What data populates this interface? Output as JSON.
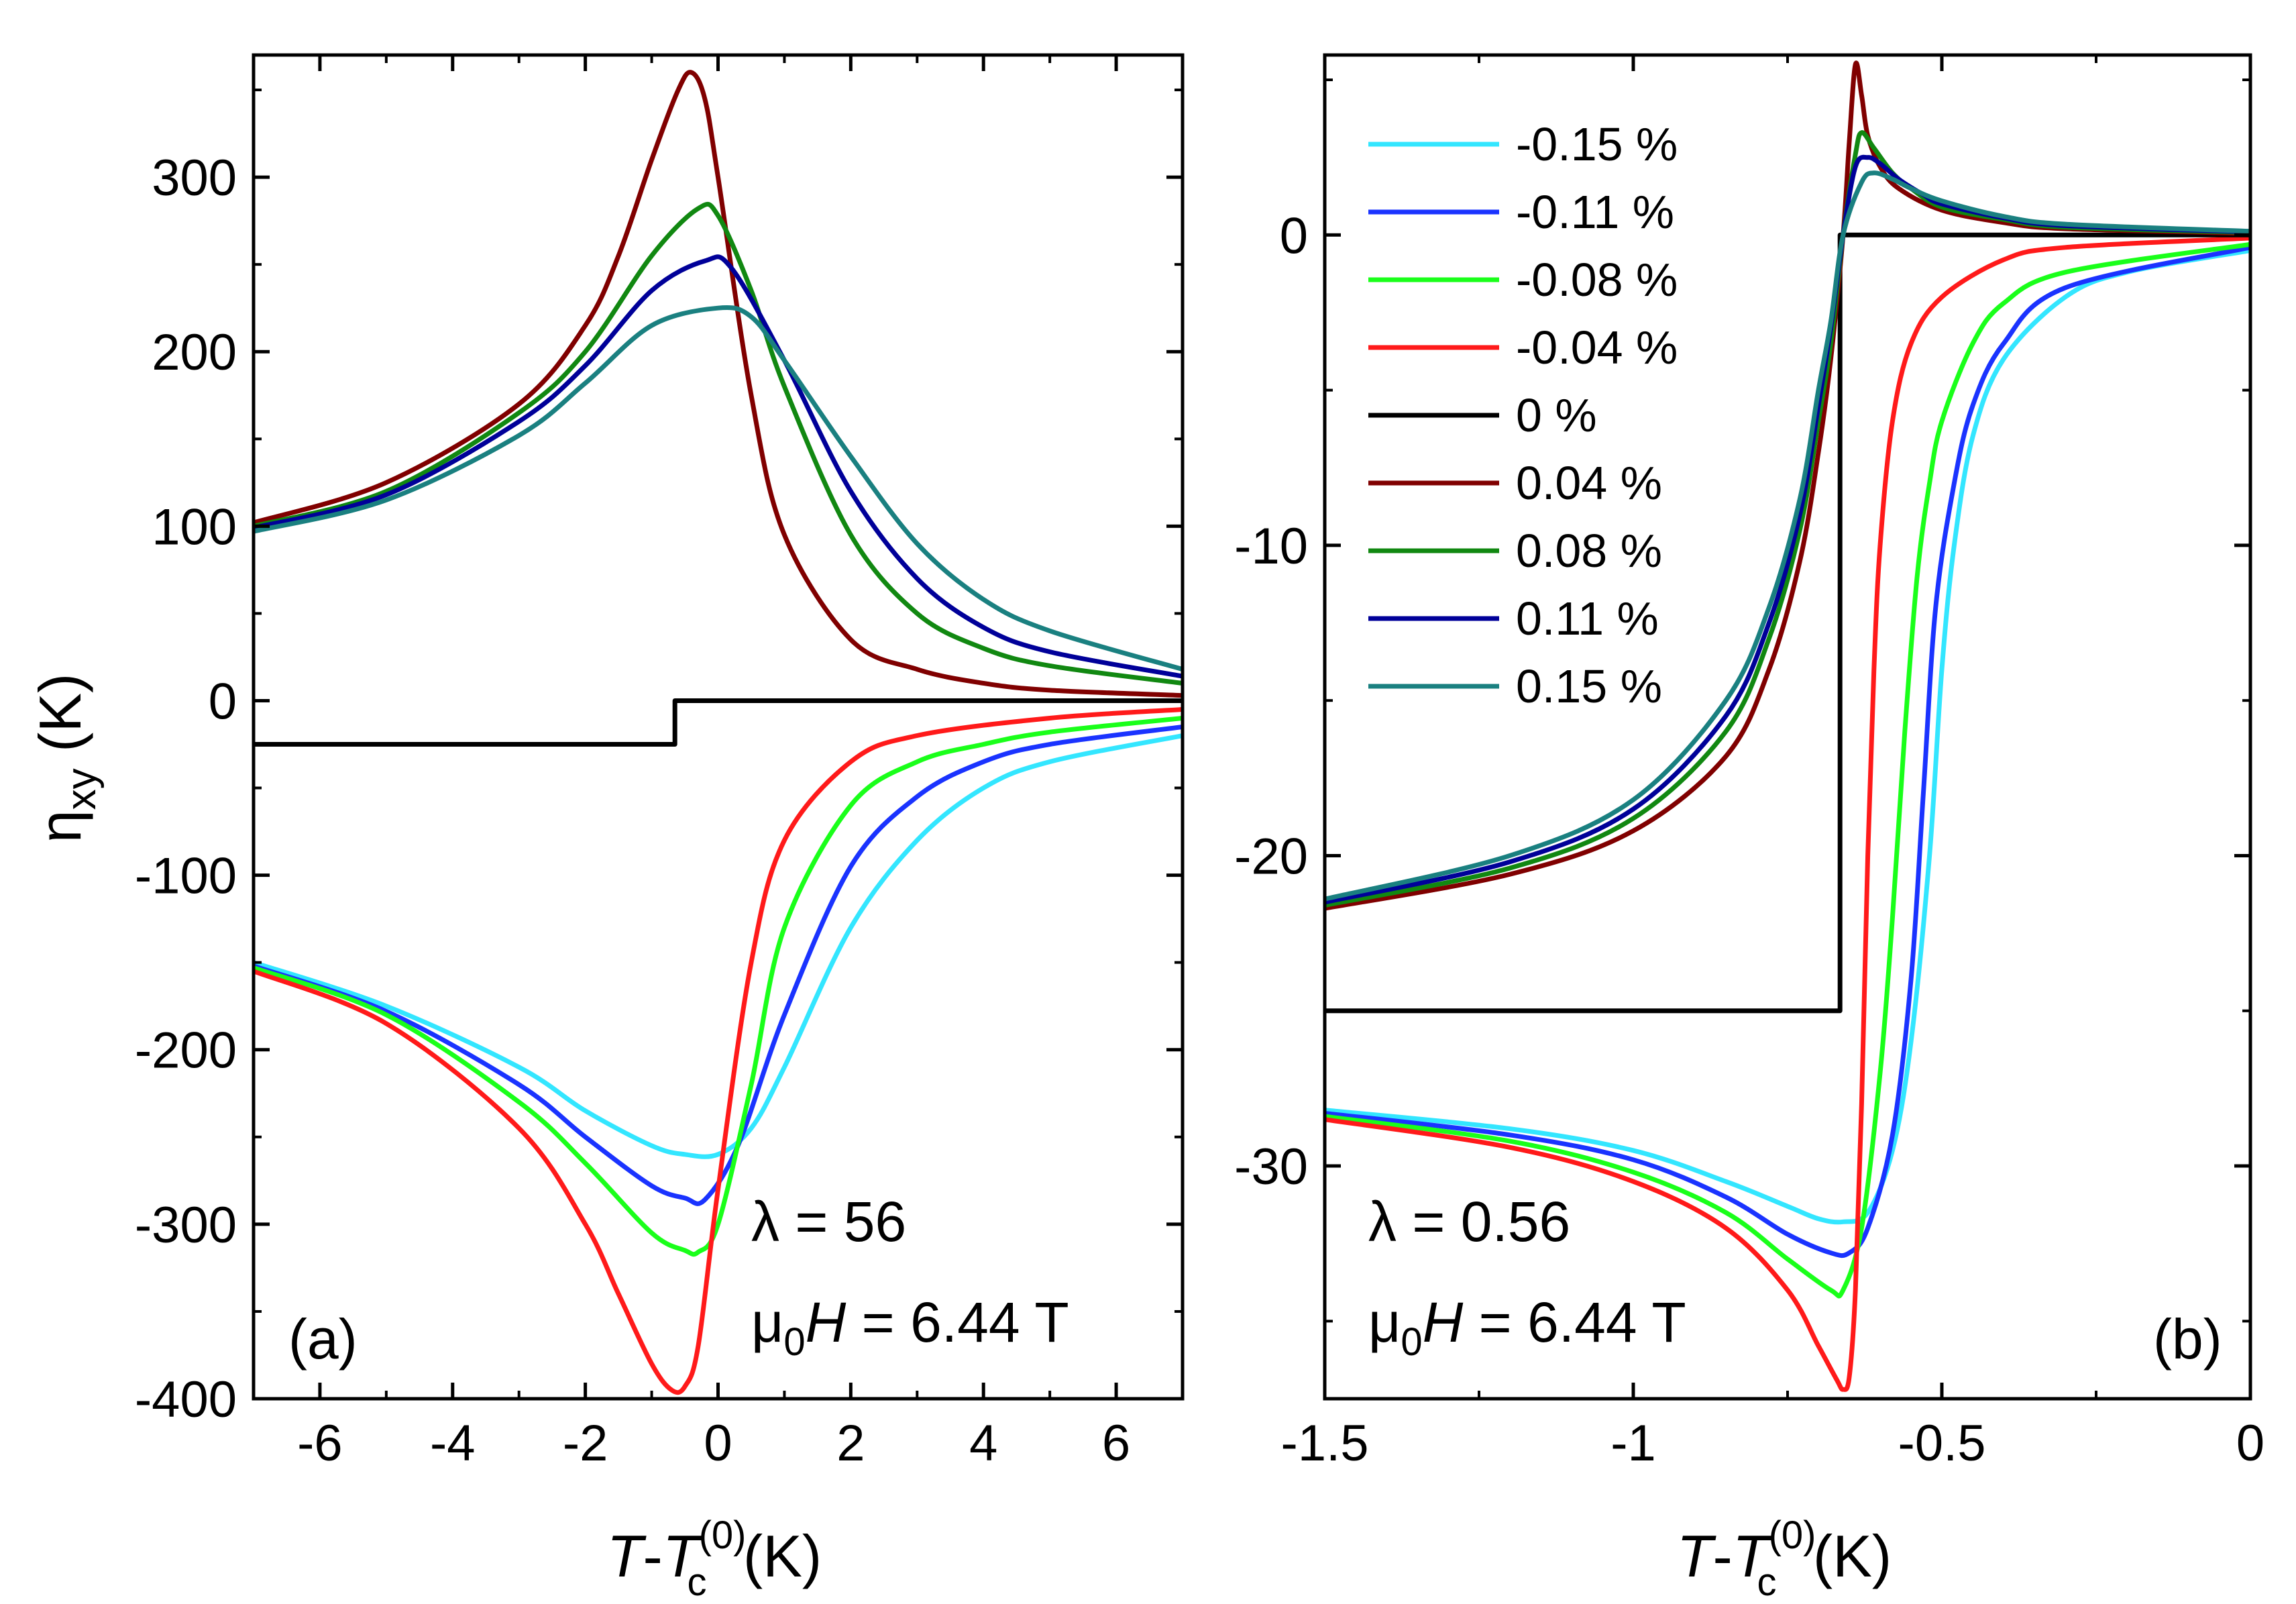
{
  "figure": {
    "ylabel": {
      "main": "η",
      "sub": "xy",
      "unit": " (K)"
    },
    "xlabel": {
      "italic": "T",
      "dash": "-",
      "italic2": "T",
      "sub": "c",
      "sup": "(0)",
      "unit": " (K)"
    }
  },
  "chart_data": [
    {
      "panel_label": "(a)",
      "type": "line",
      "xlim": [
        -7,
        7
      ],
      "ylim": [
        -400,
        370
      ],
      "xticks": [
        -6,
        -4,
        -2,
        0,
        2,
        4,
        6
      ],
      "xtick_labels": [
        "-6",
        "-4",
        "-2",
        "0",
        "2",
        "4",
        "6"
      ],
      "yticks": [
        -400,
        -300,
        -200,
        -100,
        0,
        100,
        200,
        300
      ],
      "ytick_labels": [
        "-400",
        "-300",
        "-200",
        "-100",
        "0",
        "100",
        "200",
        "300"
      ],
      "annotation": {
        "lambda_label": "λ = 56",
        "field_label": "μ",
        "field_sub": "0",
        "field_italic": "H",
        "field_value": " = 6.44 T"
      },
      "series": [
        {
          "name": "-0.15 %",
          "color": "#33e6ff",
          "x": [
            -7,
            -5,
            -3,
            -2,
            -1,
            -0.5,
            0,
            0.5,
            1,
            2,
            3,
            4,
            5,
            7
          ],
          "y": [
            -150,
            -175,
            -210,
            -235,
            -255,
            -260,
            -260,
            -245,
            -210,
            -130,
            -80,
            -50,
            -35,
            -20
          ]
        },
        {
          "name": "-0.11 %",
          "color": "#1a33ff",
          "x": [
            -7,
            -5,
            -3,
            -2,
            -1,
            -0.5,
            -0.2,
            0.3,
            1,
            2,
            3,
            4,
            5,
            7
          ],
          "y": [
            -152,
            -178,
            -220,
            -250,
            -278,
            -285,
            -286,
            -255,
            -180,
            -95,
            -55,
            -35,
            -25,
            -15
          ]
        },
        {
          "name": "-0.08 %",
          "color": "#1aff1a",
          "x": [
            -7,
            -5,
            -3,
            -2,
            -1,
            -0.5,
            -0.3,
            0,
            0.5,
            1,
            2,
            3,
            4,
            5,
            7
          ],
          "y": [
            -153,
            -180,
            -230,
            -265,
            -305,
            -315,
            -316,
            -300,
            -220,
            -130,
            -60,
            -35,
            -25,
            -18,
            -10
          ]
        },
        {
          "name": "-0.04 %",
          "color": "#ff1a1a",
          "x": [
            -7,
            -5,
            -3,
            -2,
            -1.5,
            -1,
            -0.7,
            -0.5,
            -0.3,
            0,
            0.5,
            1,
            2,
            3,
            5,
            7
          ],
          "y": [
            -155,
            -185,
            -245,
            -300,
            -340,
            -380,
            -395,
            -393,
            -370,
            -280,
            -150,
            -80,
            -35,
            -20,
            -10,
            -5
          ]
        },
        {
          "name": "0 %",
          "color": "#000000",
          "x": [
            -7,
            -0.65,
            -0.65,
            7
          ],
          "y": [
            -25,
            -25,
            0,
            0
          ]
        },
        {
          "name": "0.04 %",
          "color": "#800000",
          "x": [
            -7,
            -5,
            -3,
            -2,
            -1.5,
            -1,
            -0.6,
            -0.4,
            -0.2,
            0,
            0.5,
            1,
            2,
            3,
            4,
            5,
            7
          ],
          "y": [
            102,
            125,
            170,
            215,
            255,
            310,
            350,
            360,
            345,
            300,
            175,
            95,
            35,
            18,
            10,
            6,
            3
          ]
        },
        {
          "name": "0.08 %",
          "color": "#118811",
          "x": [
            -7,
            -5,
            -3,
            -2,
            -1,
            -0.3,
            0,
            0.5,
            1,
            2,
            3,
            4,
            5,
            7
          ],
          "y": [
            100,
            120,
            165,
            200,
            255,
            282,
            278,
            235,
            180,
            95,
            50,
            30,
            20,
            10
          ]
        },
        {
          "name": "0.11 %",
          "color": "#000099",
          "x": [
            -7,
            -5,
            -3,
            -2,
            -1,
            -0.2,
            0.2,
            1,
            2,
            3,
            4,
            5,
            7
          ],
          "y": [
            99,
            118,
            160,
            192,
            235,
            252,
            248,
            195,
            120,
            70,
            42,
            28,
            14
          ]
        },
        {
          "name": "0.15 %",
          "color": "#1a8080",
          "x": [
            -7,
            -5,
            -3,
            -2,
            -1,
            0,
            0.5,
            1,
            2,
            3,
            4,
            5,
            7
          ],
          "y": [
            97,
            115,
            152,
            182,
            215,
            225,
            220,
            195,
            140,
            90,
            58,
            40,
            18
          ]
        }
      ]
    },
    {
      "panel_label": "(b)",
      "type": "line",
      "xlim": [
        -1.5,
        0
      ],
      "ylim": [
        -37.5,
        5.8
      ],
      "xticks": [
        -1.5,
        -1,
        -0.5,
        0
      ],
      "xtick_labels": [
        "-1.5",
        "-1",
        "-0.5",
        "0"
      ],
      "yticks": [
        -30,
        -20,
        -10,
        0
      ],
      "ytick_labels": [
        "-30",
        "-20",
        "-10",
        "0"
      ],
      "annotation": {
        "lambda_label": "λ = 0.56",
        "field_label": "μ",
        "field_sub": "0",
        "field_italic": "H",
        "field_value": " = 6.44 T"
      },
      "legend": {
        "position": "top-left"
      },
      "series": [
        {
          "name": "-0.15 %",
          "color": "#33e6ff",
          "x": [
            -1.5,
            -1.2,
            -1.0,
            -0.85,
            -0.75,
            -0.7,
            -0.66,
            -0.62,
            -0.58,
            -0.55,
            -0.52,
            -0.5,
            -0.48,
            -0.45,
            -0.4,
            -0.3,
            -0.2,
            0
          ],
          "y": [
            -28.2,
            -28.8,
            -29.5,
            -30.5,
            -31.3,
            -31.7,
            -31.8,
            -31.5,
            -29.5,
            -26,
            -20,
            -14,
            -10,
            -6.5,
            -4,
            -2,
            -1.2,
            -0.5
          ]
        },
        {
          "name": "-0.11 %",
          "color": "#1a33ff",
          "x": [
            -1.5,
            -1.2,
            -1.0,
            -0.85,
            -0.75,
            -0.68,
            -0.65,
            -0.62,
            -0.58,
            -0.55,
            -0.53,
            -0.51,
            -0.48,
            -0.45,
            -0.4,
            -0.3,
            0
          ],
          "y": [
            -28.3,
            -29,
            -29.8,
            -31,
            -32.2,
            -32.8,
            -32.8,
            -32,
            -29,
            -24,
            -18,
            -12,
            -8,
            -5.5,
            -3.5,
            -1.7,
            -0.4
          ]
        },
        {
          "name": "-0.08 %",
          "color": "#1aff1a",
          "x": [
            -1.5,
            -1.2,
            -1.0,
            -0.85,
            -0.75,
            -0.68,
            -0.66,
            -0.63,
            -0.6,
            -0.58,
            -0.56,
            -0.54,
            -0.52,
            -0.5,
            -0.45,
            -0.4,
            -0.3,
            0
          ],
          "y": [
            -28.4,
            -29.2,
            -30.2,
            -31.5,
            -33,
            -34,
            -34,
            -32,
            -27,
            -22,
            -16,
            -11,
            -8,
            -6,
            -3.5,
            -2.2,
            -1.2,
            -0.3
          ]
        },
        {
          "name": "-0.04 %",
          "color": "#ff1a1a",
          "x": [
            -1.5,
            -1.2,
            -1.0,
            -0.85,
            -0.75,
            -0.7,
            -0.67,
            -0.66,
            -0.65,
            -0.64,
            -0.63,
            -0.62,
            -0.61,
            -0.6,
            -0.58,
            -0.55,
            -0.5,
            -0.4,
            -0.3,
            0
          ],
          "y": [
            -28.5,
            -29.4,
            -30.5,
            -32,
            -34,
            -35.8,
            -36.9,
            -37.2,
            -36.8,
            -34,
            -28,
            -20,
            -14,
            -10,
            -6,
            -3.5,
            -2,
            -0.8,
            -0.4,
            -0.1
          ]
        },
        {
          "name": "0 %",
          "color": "#000000",
          "x": [
            -1.5,
            -0.665,
            -0.665,
            0
          ],
          "y": [
            -25,
            -25,
            0,
            0
          ]
        },
        {
          "name": "0.04 %",
          "color": "#800000",
          "x": [
            -1.5,
            -1.2,
            -1.0,
            -0.85,
            -0.78,
            -0.73,
            -0.7,
            -0.68,
            -0.66,
            -0.65,
            -0.64,
            -0.63,
            -0.62,
            -0.6,
            -0.57,
            -0.5,
            -0.4,
            -0.3,
            0
          ],
          "y": [
            -21.7,
            -20.6,
            -19.2,
            -16.8,
            -14,
            -10.5,
            -7,
            -4,
            0,
            3,
            5.5,
            4.5,
            3.2,
            2.2,
            1.5,
            0.8,
            0.4,
            0.2,
            0.05
          ]
        },
        {
          "name": "0.08 %",
          "color": "#118811",
          "x": [
            -1.5,
            -1.2,
            -1.0,
            -0.85,
            -0.78,
            -0.73,
            -0.7,
            -0.68,
            -0.66,
            -0.64,
            -0.63,
            -0.61,
            -0.58,
            -0.55,
            -0.5,
            -0.4,
            -0.3,
            0
          ],
          "y": [
            -21.6,
            -20.4,
            -18.8,
            -16,
            -13,
            -9.5,
            -6,
            -3.5,
            0,
            2.6,
            3.3,
            2.8,
            2,
            1.5,
            0.9,
            0.5,
            0.25,
            0.08
          ]
        },
        {
          "name": "0.11 %",
          "color": "#000099",
          "x": [
            -1.5,
            -1.2,
            -1.0,
            -0.85,
            -0.78,
            -0.73,
            -0.7,
            -0.68,
            -0.66,
            -0.64,
            -0.62,
            -0.6,
            -0.57,
            -0.53,
            -0.5,
            -0.4,
            -0.3,
            0
          ],
          "y": [
            -21.5,
            -20.2,
            -18.5,
            -15.5,
            -12.5,
            -9,
            -5.5,
            -3,
            0,
            2.2,
            2.5,
            2.3,
            1.8,
            1.3,
            1,
            0.55,
            0.3,
            0.1
          ]
        },
        {
          "name": "0.15 %",
          "color": "#1a8080",
          "x": [
            -1.5,
            -1.2,
            -1.0,
            -0.85,
            -0.78,
            -0.73,
            -0.7,
            -0.68,
            -0.66,
            -0.63,
            -0.61,
            -0.58,
            -0.55,
            -0.5,
            -0.4,
            -0.3,
            0
          ],
          "y": [
            -21.4,
            -20,
            -18.2,
            -15,
            -12,
            -8.5,
            -5,
            -2.8,
            0,
            1.7,
            2,
            1.8,
            1.5,
            1.1,
            0.6,
            0.35,
            0.12
          ]
        }
      ]
    }
  ]
}
